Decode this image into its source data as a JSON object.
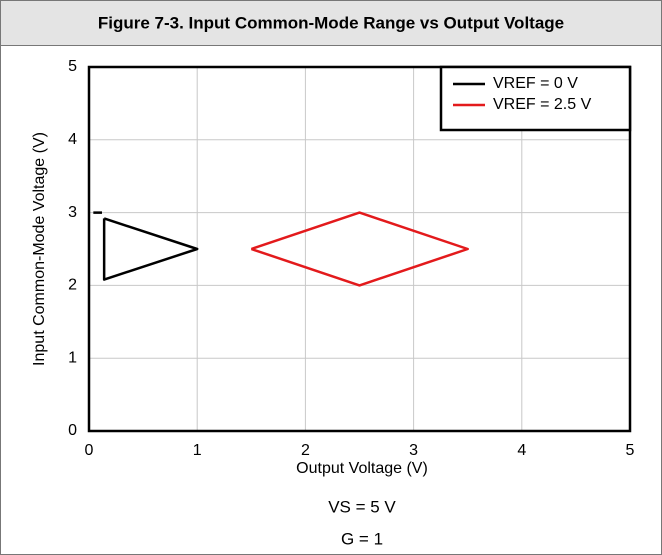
{
  "chart_data": {
    "type": "line",
    "title": "Figure 7-3. Input Common-Mode Range vs Output Voltage",
    "xlabel": "Output Voltage (V)",
    "ylabel": "Input Common-Mode Voltage (V)",
    "annotations": [
      "VS = 5 V",
      "G = 1"
    ],
    "series": [
      {
        "name": "VREF = 0 V",
        "color": "#000000",
        "x": [
          0.04,
          0.12,
          null,
          0.14,
          1,
          0.14,
          0.14
        ],
        "values": [
          3,
          3,
          null,
          2.92,
          2.5,
          2.08,
          2.92
        ]
      },
      {
        "name": "VREF = 2.5 V",
        "color": "#e31a1c",
        "x": [
          1.5,
          2.5,
          3.5,
          2.5,
          1.5
        ],
        "values": [
          2.5,
          3,
          2.5,
          2,
          2.5
        ]
      }
    ],
    "xlim": [
      0,
      5
    ],
    "ylim": [
      0,
      5
    ],
    "xticks": [
      0,
      1,
      2,
      3,
      4,
      5
    ],
    "yticks": [
      0,
      1,
      2,
      3,
      4,
      5
    ],
    "grid": true,
    "legend": "upper right"
  }
}
